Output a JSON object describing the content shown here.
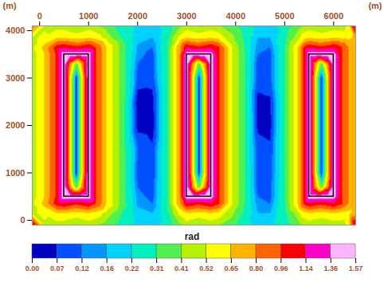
{
  "chart_data": {
    "type": "heatmap",
    "x_label": "(m)",
    "y_label": "(m)",
    "xlim": [
      -150,
      6450
    ],
    "ylim": [
      -100,
      4100
    ],
    "xticks": [
      0,
      1000,
      2000,
      3000,
      4000,
      5000,
      6000
    ],
    "yticks": [
      0,
      1000,
      2000,
      3000,
      4000
    ],
    "x": [
      -150,
      100,
      350,
      500,
      625,
      750,
      875,
      1000,
      1150,
      1400,
      1700,
      2000,
      2300,
      2600,
      2850,
      3000,
      3125,
      3250,
      3375,
      3500,
      3650,
      3900,
      4200,
      4450,
      4700,
      5000,
      5250,
      5400,
      5500,
      5625,
      5750,
      5875,
      6000,
      6150,
      6300,
      6450
    ],
    "y": [
      -100,
      150,
      350,
      500,
      700,
      1000,
      1500,
      2000,
      2500,
      3000,
      3300,
      3500,
      3650,
      3850,
      4100
    ],
    "values": [
      [
        1.2,
        0.5,
        0.45,
        0.45,
        0.42,
        0.4,
        0.42,
        0.45,
        0.42,
        0.35,
        0.25,
        0.2,
        0.2,
        0.25,
        0.38,
        0.45,
        0.42,
        0.4,
        0.42,
        0.45,
        0.42,
        0.35,
        0.25,
        0.2,
        0.2,
        0.25,
        0.35,
        0.42,
        0.45,
        0.42,
        0.4,
        0.42,
        0.45,
        0.45,
        0.55,
        1.2
      ],
      [
        0.5,
        0.55,
        0.65,
        0.65,
        0.62,
        0.6,
        0.62,
        0.65,
        0.6,
        0.45,
        0.3,
        0.18,
        0.16,
        0.28,
        0.55,
        0.65,
        0.62,
        0.6,
        0.62,
        0.65,
        0.6,
        0.45,
        0.28,
        0.16,
        0.16,
        0.28,
        0.45,
        0.6,
        0.65,
        0.62,
        0.6,
        0.62,
        0.65,
        0.62,
        0.6,
        0.7
      ],
      [
        0.5,
        0.7,
        1.05,
        1.1,
        1.05,
        1.0,
        1.05,
        1.1,
        0.95,
        0.6,
        0.35,
        0.15,
        0.12,
        0.3,
        0.75,
        1.1,
        1.05,
        1.0,
        1.05,
        1.1,
        1.0,
        0.55,
        0.3,
        0.14,
        0.12,
        0.3,
        0.6,
        1.0,
        1.1,
        1.05,
        1.0,
        1.05,
        1.1,
        1.0,
        0.8,
        0.7
      ],
      [
        0.45,
        0.65,
        1.0,
        1.5,
        1.5,
        1.5,
        1.5,
        1.5,
        0.95,
        0.6,
        0.35,
        0.14,
        0.1,
        0.3,
        0.75,
        1.5,
        1.5,
        1.5,
        1.5,
        1.5,
        1.0,
        0.55,
        0.3,
        0.12,
        0.1,
        0.3,
        0.6,
        1.0,
        1.5,
        1.5,
        1.5,
        1.5,
        1.5,
        1.0,
        0.8,
        0.65
      ],
      [
        0.45,
        0.65,
        1.0,
        1.5,
        0.8,
        0.35,
        0.8,
        1.5,
        0.95,
        0.6,
        0.35,
        0.12,
        0.1,
        0.3,
        0.75,
        1.5,
        0.8,
        0.35,
        0.8,
        1.5,
        1.0,
        0.55,
        0.3,
        0.1,
        0.1,
        0.3,
        0.6,
        1.0,
        1.5,
        0.8,
        0.35,
        0.8,
        1.5,
        1.0,
        0.8,
        0.65
      ],
      [
        0.45,
        0.65,
        1.0,
        1.5,
        0.6,
        0.04,
        0.6,
        1.5,
        0.95,
        0.6,
        0.35,
        0.1,
        0.08,
        0.3,
        0.75,
        1.5,
        0.6,
        0.04,
        0.6,
        1.5,
        1.0,
        0.55,
        0.3,
        0.1,
        0.09,
        0.3,
        0.6,
        1.0,
        1.5,
        0.6,
        0.04,
        0.6,
        1.5,
        1.0,
        0.8,
        0.65
      ],
      [
        0.45,
        0.65,
        1.0,
        1.5,
        0.6,
        0.04,
        0.6,
        1.5,
        0.95,
        0.6,
        0.35,
        0.12,
        0.08,
        0.3,
        0.75,
        1.5,
        0.6,
        0.04,
        0.6,
        1.5,
        1.0,
        0.55,
        0.3,
        0.09,
        0.08,
        0.3,
        0.6,
        1.0,
        1.5,
        0.6,
        0.04,
        0.6,
        1.5,
        1.0,
        0.8,
        0.65
      ],
      [
        0.45,
        0.65,
        1.0,
        1.5,
        0.6,
        0.04,
        0.6,
        1.5,
        0.95,
        0.6,
        0.35,
        0.05,
        0.04,
        0.3,
        0.75,
        1.5,
        0.6,
        0.04,
        0.6,
        1.5,
        1.0,
        0.55,
        0.3,
        0.06,
        0.05,
        0.3,
        0.6,
        1.0,
        1.5,
        0.6,
        0.04,
        0.6,
        1.5,
        1.0,
        0.8,
        0.65
      ],
      [
        0.45,
        0.65,
        1.0,
        1.5,
        0.6,
        0.04,
        0.6,
        1.5,
        0.95,
        0.6,
        0.35,
        0.04,
        0.05,
        0.3,
        0.75,
        1.5,
        0.6,
        0.04,
        0.6,
        1.5,
        1.0,
        0.55,
        0.3,
        0.05,
        0.06,
        0.3,
        0.6,
        1.0,
        1.5,
        0.6,
        0.04,
        0.6,
        1.5,
        1.0,
        0.8,
        0.65
      ],
      [
        0.45,
        0.65,
        1.0,
        1.5,
        0.6,
        0.04,
        0.6,
        1.5,
        0.95,
        0.6,
        0.35,
        0.1,
        0.09,
        0.3,
        0.75,
        1.5,
        0.6,
        0.04,
        0.6,
        1.5,
        1.0,
        0.55,
        0.3,
        0.1,
        0.1,
        0.3,
        0.6,
        1.0,
        1.5,
        0.6,
        0.04,
        0.6,
        1.5,
        1.0,
        0.8,
        0.65
      ],
      [
        0.45,
        0.65,
        1.0,
        1.5,
        0.8,
        0.35,
        0.8,
        1.5,
        0.95,
        0.6,
        0.35,
        0.12,
        0.1,
        0.3,
        0.75,
        1.5,
        0.8,
        0.35,
        0.8,
        1.5,
        1.0,
        0.55,
        0.3,
        0.1,
        0.1,
        0.3,
        0.6,
        1.0,
        1.5,
        0.8,
        0.35,
        0.8,
        1.5,
        1.0,
        0.8,
        0.65
      ],
      [
        0.45,
        0.65,
        1.0,
        1.5,
        1.5,
        1.5,
        1.5,
        1.5,
        0.95,
        0.6,
        0.35,
        0.14,
        0.1,
        0.3,
        0.75,
        1.5,
        1.5,
        1.5,
        1.5,
        1.5,
        1.0,
        0.55,
        0.3,
        0.12,
        0.1,
        0.3,
        0.6,
        1.0,
        1.5,
        1.5,
        1.5,
        1.5,
        1.5,
        1.0,
        0.8,
        0.65
      ],
      [
        0.5,
        0.7,
        1.05,
        1.1,
        1.05,
        1.0,
        1.05,
        1.1,
        0.95,
        0.6,
        0.35,
        0.15,
        0.12,
        0.3,
        0.75,
        1.1,
        1.05,
        1.0,
        1.05,
        1.1,
        1.0,
        0.55,
        0.3,
        0.14,
        0.12,
        0.3,
        0.6,
        1.0,
        1.1,
        1.05,
        1.0,
        1.05,
        1.1,
        1.0,
        0.8,
        0.7
      ],
      [
        0.5,
        0.55,
        0.65,
        0.65,
        0.62,
        0.6,
        0.62,
        0.65,
        0.6,
        0.45,
        0.3,
        0.18,
        0.16,
        0.28,
        0.55,
        0.65,
        0.62,
        0.6,
        0.62,
        0.65,
        0.6,
        0.45,
        0.28,
        0.16,
        0.16,
        0.28,
        0.45,
        0.6,
        0.65,
        0.62,
        0.6,
        0.62,
        0.65,
        0.62,
        0.6,
        0.7
      ],
      [
        0.9,
        0.5,
        0.45,
        0.45,
        0.42,
        0.4,
        0.42,
        0.45,
        0.42,
        0.35,
        0.25,
        0.2,
        0.2,
        0.25,
        0.38,
        0.45,
        0.42,
        0.4,
        0.42,
        0.45,
        0.42,
        0.35,
        0.25,
        0.2,
        0.2,
        0.25,
        0.35,
        0.42,
        0.45,
        0.42,
        0.4,
        0.42,
        0.45,
        0.45,
        0.55,
        1.4
      ]
    ],
    "rectangles": [
      {
        "x1": 500,
        "x2": 1000,
        "y1": 500,
        "y2": 3500
      },
      {
        "x1": 3000,
        "x2": 3500,
        "y1": 500,
        "y2": 3500
      },
      {
        "x1": 5500,
        "x2": 6000,
        "y1": 500,
        "y2": 3500
      }
    ],
    "colorbar": {
      "label": "rad",
      "ticks": [
        {
          "value": 0,
          "label": "0.00"
        },
        0.07,
        0.12,
        0.16,
        0.22,
        0.31,
        0.41,
        0.52,
        0.65,
        {
          "value": 0.8,
          "label": "0.80"
        },
        0.96,
        1.14,
        1.36,
        1.57
      ],
      "colors": [
        "#0000c0",
        "#0050ff",
        "#0096ff",
        "#00d2ff",
        "#00f0c0",
        "#50f050",
        "#b4f000",
        "#ffff00",
        "#ffb400",
        "#ff6400",
        "#ff0000",
        "#ff00c8",
        "#ffb4ff"
      ]
    }
  }
}
